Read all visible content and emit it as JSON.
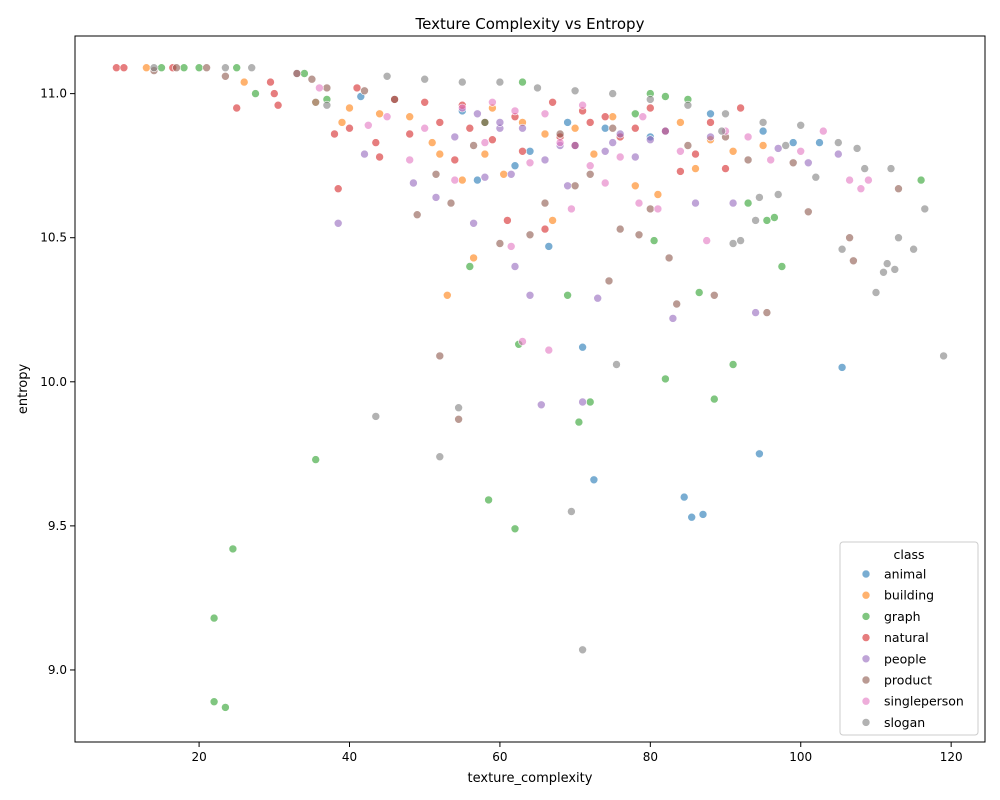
{
  "chart_data": {
    "type": "scatter",
    "title": "Texture Complexity vs Entropy",
    "xlabel": "texture_complexity",
    "ylabel": "entropy",
    "xlim": [
      3.5,
      124.5
    ],
    "ylim": [
      8.75,
      11.2
    ],
    "xticks": [
      20,
      40,
      60,
      80,
      100,
      120
    ],
    "yticks": [
      9.0,
      9.5,
      10.0,
      10.5,
      11.0
    ],
    "ytick_labels": [
      "9.0",
      "9.5",
      "10.0",
      "10.5",
      "11.0"
    ],
    "grid": false,
    "legend": {
      "title": "class",
      "position": "lower-right"
    },
    "point_alpha": 0.6,
    "series": [
      {
        "name": "animal",
        "color": "#1f77b4",
        "points": [
          [
            41.5,
            10.99
          ],
          [
            55,
            10.94
          ],
          [
            62,
            10.75
          ],
          [
            66.5,
            10.47
          ],
          [
            71,
            10.12
          ],
          [
            72.5,
            9.66
          ],
          [
            84.5,
            9.6
          ],
          [
            85.5,
            9.53
          ],
          [
            87,
            9.54
          ],
          [
            94.5,
            9.75
          ],
          [
            99,
            10.83
          ],
          [
            102.5,
            10.83
          ],
          [
            105.5,
            10.05
          ],
          [
            95,
            10.87
          ],
          [
            69,
            10.9
          ],
          [
            74,
            10.88
          ],
          [
            57,
            10.7
          ],
          [
            64,
            10.8
          ],
          [
            80,
            10.85
          ],
          [
            88,
            10.93
          ]
        ]
      },
      {
        "name": "building",
        "color": "#ff7f0e",
        "points": [
          [
            13,
            11.09
          ],
          [
            26,
            11.04
          ],
          [
            35.5,
            10.97
          ],
          [
            39,
            10.9
          ],
          [
            40,
            10.95
          ],
          [
            44,
            10.93
          ],
          [
            51,
            10.83
          ],
          [
            52,
            10.79
          ],
          [
            53,
            10.3
          ],
          [
            55,
            10.7
          ],
          [
            56.5,
            10.43
          ],
          [
            58,
            10.79
          ],
          [
            60.5,
            10.72
          ],
          [
            67,
            10.56
          ],
          [
            72.5,
            10.79
          ],
          [
            78,
            10.68
          ],
          [
            81,
            10.65
          ],
          [
            86,
            10.74
          ],
          [
            88,
            10.84
          ],
          [
            91,
            10.8
          ],
          [
            95,
            10.82
          ],
          [
            66,
            10.86
          ],
          [
            63,
            10.9
          ],
          [
            70,
            10.88
          ],
          [
            48,
            10.92
          ],
          [
            59,
            10.95
          ],
          [
            75,
            10.92
          ],
          [
            84,
            10.9
          ]
        ]
      },
      {
        "name": "graph",
        "color": "#2ca02c",
        "points": [
          [
            15,
            11.09
          ],
          [
            18,
            11.09
          ],
          [
            20,
            11.09
          ],
          [
            25,
            11.09
          ],
          [
            27.5,
            11.0
          ],
          [
            34,
            11.07
          ],
          [
            35.5,
            9.73
          ],
          [
            37,
            10.98
          ],
          [
            22,
            9.18
          ],
          [
            22,
            8.89
          ],
          [
            23.5,
            8.87
          ],
          [
            24.5,
            9.42
          ],
          [
            56,
            10.4
          ],
          [
            58.5,
            9.59
          ],
          [
            62,
            9.49
          ],
          [
            62.5,
            10.13
          ],
          [
            69,
            10.3
          ],
          [
            70.5,
            9.86
          ],
          [
            72,
            9.93
          ],
          [
            78,
            10.93
          ],
          [
            80.5,
            10.49
          ],
          [
            82,
            10.01
          ],
          [
            86.5,
            10.31
          ],
          [
            88.5,
            9.94
          ],
          [
            91,
            10.06
          ],
          [
            93,
            10.62
          ],
          [
            95.5,
            10.56
          ],
          [
            96.5,
            10.57
          ],
          [
            97.5,
            10.4
          ],
          [
            116,
            10.7
          ],
          [
            63,
            11.04
          ],
          [
            80,
            11.0
          ],
          [
            85,
            10.98
          ],
          [
            58,
            10.9
          ],
          [
            82,
            10.99
          ]
        ]
      },
      {
        "name": "natural",
        "color": "#d62728",
        "points": [
          [
            9,
            11.09
          ],
          [
            10,
            11.09
          ],
          [
            16.5,
            11.09
          ],
          [
            25,
            10.95
          ],
          [
            29.5,
            11.04
          ],
          [
            30,
            11.0
          ],
          [
            30.5,
            10.96
          ],
          [
            33,
            11.07
          ],
          [
            38,
            10.86
          ],
          [
            38.5,
            10.67
          ],
          [
            40,
            10.88
          ],
          [
            41,
            11.02
          ],
          [
            43.5,
            10.83
          ],
          [
            44,
            10.78
          ],
          [
            46,
            10.98
          ],
          [
            48,
            10.86
          ],
          [
            50,
            10.97
          ],
          [
            52,
            10.9
          ],
          [
            54,
            10.77
          ],
          [
            56,
            10.88
          ],
          [
            59,
            10.84
          ],
          [
            61,
            10.56
          ],
          [
            63,
            10.8
          ],
          [
            66,
            10.53
          ],
          [
            68,
            10.85
          ],
          [
            70,
            10.82
          ],
          [
            72,
            10.9
          ],
          [
            74,
            10.92
          ],
          [
            76,
            10.85
          ],
          [
            78,
            10.88
          ],
          [
            80,
            10.95
          ],
          [
            82,
            10.87
          ],
          [
            84,
            10.73
          ],
          [
            86,
            10.79
          ],
          [
            88,
            10.9
          ],
          [
            90,
            10.74
          ],
          [
            92,
            10.95
          ],
          [
            55,
            10.96
          ],
          [
            62,
            10.92
          ],
          [
            67,
            10.97
          ],
          [
            71,
            10.94
          ]
        ]
      },
      {
        "name": "people",
        "color": "#9467bd",
        "points": [
          [
            38.5,
            10.55
          ],
          [
            42,
            10.79
          ],
          [
            48.5,
            10.69
          ],
          [
            51.5,
            10.64
          ],
          [
            54,
            10.85
          ],
          [
            56.5,
            10.55
          ],
          [
            58,
            10.71
          ],
          [
            60,
            10.88
          ],
          [
            61.5,
            10.72
          ],
          [
            62,
            10.4
          ],
          [
            64,
            10.3
          ],
          [
            66,
            10.77
          ],
          [
            68,
            10.82
          ],
          [
            69,
            10.68
          ],
          [
            71,
            9.93
          ],
          [
            65.5,
            9.92
          ],
          [
            73,
            10.29
          ],
          [
            75,
            10.83
          ],
          [
            78,
            10.78
          ],
          [
            83,
            10.22
          ],
          [
            86,
            10.62
          ],
          [
            91,
            10.62
          ],
          [
            94,
            10.24
          ],
          [
            97,
            10.81
          ],
          [
            101,
            10.76
          ],
          [
            105,
            10.79
          ],
          [
            60,
            10.9
          ],
          [
            70,
            10.82
          ],
          [
            76,
            10.86
          ],
          [
            80,
            10.84
          ],
          [
            88,
            10.85
          ],
          [
            57,
            10.93
          ],
          [
            63,
            10.88
          ],
          [
            74,
            10.8
          ],
          [
            82,
            10.87
          ]
        ]
      },
      {
        "name": "product",
        "color": "#8c564b",
        "points": [
          [
            14,
            11.08
          ],
          [
            17,
            11.09
          ],
          [
            21,
            11.09
          ],
          [
            23.5,
            11.06
          ],
          [
            35,
            11.05
          ],
          [
            37,
            11.02
          ],
          [
            42,
            11.01
          ],
          [
            46,
            10.98
          ],
          [
            49,
            10.58
          ],
          [
            51.5,
            10.72
          ],
          [
            52,
            10.09
          ],
          [
            53.5,
            10.62
          ],
          [
            54.5,
            9.87
          ],
          [
            56.5,
            10.82
          ],
          [
            60,
            10.48
          ],
          [
            64,
            10.51
          ],
          [
            66,
            10.62
          ],
          [
            70,
            10.68
          ],
          [
            72,
            10.72
          ],
          [
            74.5,
            10.35
          ],
          [
            76,
            10.53
          ],
          [
            78.5,
            10.51
          ],
          [
            80,
            10.6
          ],
          [
            82.5,
            10.43
          ],
          [
            83.5,
            10.27
          ],
          [
            88.5,
            10.3
          ],
          [
            93,
            10.77
          ],
          [
            95.5,
            10.24
          ],
          [
            99,
            10.76
          ],
          [
            101,
            10.59
          ],
          [
            106.5,
            10.5
          ],
          [
            107,
            10.42
          ],
          [
            113,
            10.67
          ],
          [
            58,
            10.9
          ],
          [
            68,
            10.86
          ],
          [
            75,
            10.88
          ],
          [
            85,
            10.82
          ],
          [
            90,
            10.85
          ]
        ]
      },
      {
        "name": "singleperson",
        "color": "#e377c2",
        "points": [
          [
            36,
            11.02
          ],
          [
            42.5,
            10.89
          ],
          [
            45,
            10.92
          ],
          [
            48,
            10.77
          ],
          [
            50,
            10.88
          ],
          [
            54,
            10.7
          ],
          [
            58,
            10.83
          ],
          [
            61.5,
            10.47
          ],
          [
            63,
            10.14
          ],
          [
            64,
            10.76
          ],
          [
            66.5,
            10.11
          ],
          [
            68,
            10.83
          ],
          [
            69.5,
            10.6
          ],
          [
            72,
            10.75
          ],
          [
            74,
            10.69
          ],
          [
            76,
            10.78
          ],
          [
            78.5,
            10.62
          ],
          [
            81,
            10.6
          ],
          [
            84,
            10.8
          ],
          [
            87.5,
            10.49
          ],
          [
            90,
            10.87
          ],
          [
            93,
            10.85
          ],
          [
            96,
            10.77
          ],
          [
            100,
            10.8
          ],
          [
            103,
            10.87
          ],
          [
            106.5,
            10.7
          ],
          [
            108,
            10.67
          ],
          [
            109,
            10.7
          ],
          [
            62,
            10.94
          ],
          [
            66,
            10.93
          ],
          [
            71,
            10.96
          ],
          [
            79,
            10.92
          ],
          [
            55,
            10.95
          ],
          [
            59,
            10.97
          ]
        ]
      },
      {
        "name": "slogan",
        "color": "#7f7f7f",
        "points": [
          [
            14,
            11.09
          ],
          [
            23.5,
            11.09
          ],
          [
            27,
            11.09
          ],
          [
            33,
            11.07
          ],
          [
            35.5,
            10.97
          ],
          [
            37,
            10.96
          ],
          [
            43.5,
            9.88
          ],
          [
            52,
            9.74
          ],
          [
            54.5,
            9.91
          ],
          [
            69.5,
            9.55
          ],
          [
            71,
            9.07
          ],
          [
            75.5,
            10.06
          ],
          [
            89.5,
            10.87
          ],
          [
            91,
            10.48
          ],
          [
            92,
            10.49
          ],
          [
            94,
            10.56
          ],
          [
            94.5,
            10.64
          ],
          [
            97,
            10.65
          ],
          [
            98,
            10.82
          ],
          [
            100,
            10.89
          ],
          [
            102,
            10.71
          ],
          [
            105,
            10.83
          ],
          [
            105.5,
            10.46
          ],
          [
            107.5,
            10.81
          ],
          [
            108.5,
            10.74
          ],
          [
            110,
            10.31
          ],
          [
            111,
            10.38
          ],
          [
            111.5,
            10.41
          ],
          [
            112,
            10.74
          ],
          [
            112.5,
            10.39
          ],
          [
            113,
            10.5
          ],
          [
            115,
            10.46
          ],
          [
            116.5,
            10.6
          ],
          [
            119,
            10.09
          ],
          [
            60,
            11.04
          ],
          [
            65,
            11.02
          ],
          [
            70,
            11.01
          ],
          [
            75,
            11.0
          ],
          [
            80,
            10.98
          ],
          [
            85,
            10.96
          ],
          [
            90,
            10.93
          ],
          [
            95,
            10.9
          ],
          [
            45,
            11.06
          ],
          [
            50,
            11.05
          ],
          [
            55,
            11.04
          ]
        ]
      }
    ]
  }
}
